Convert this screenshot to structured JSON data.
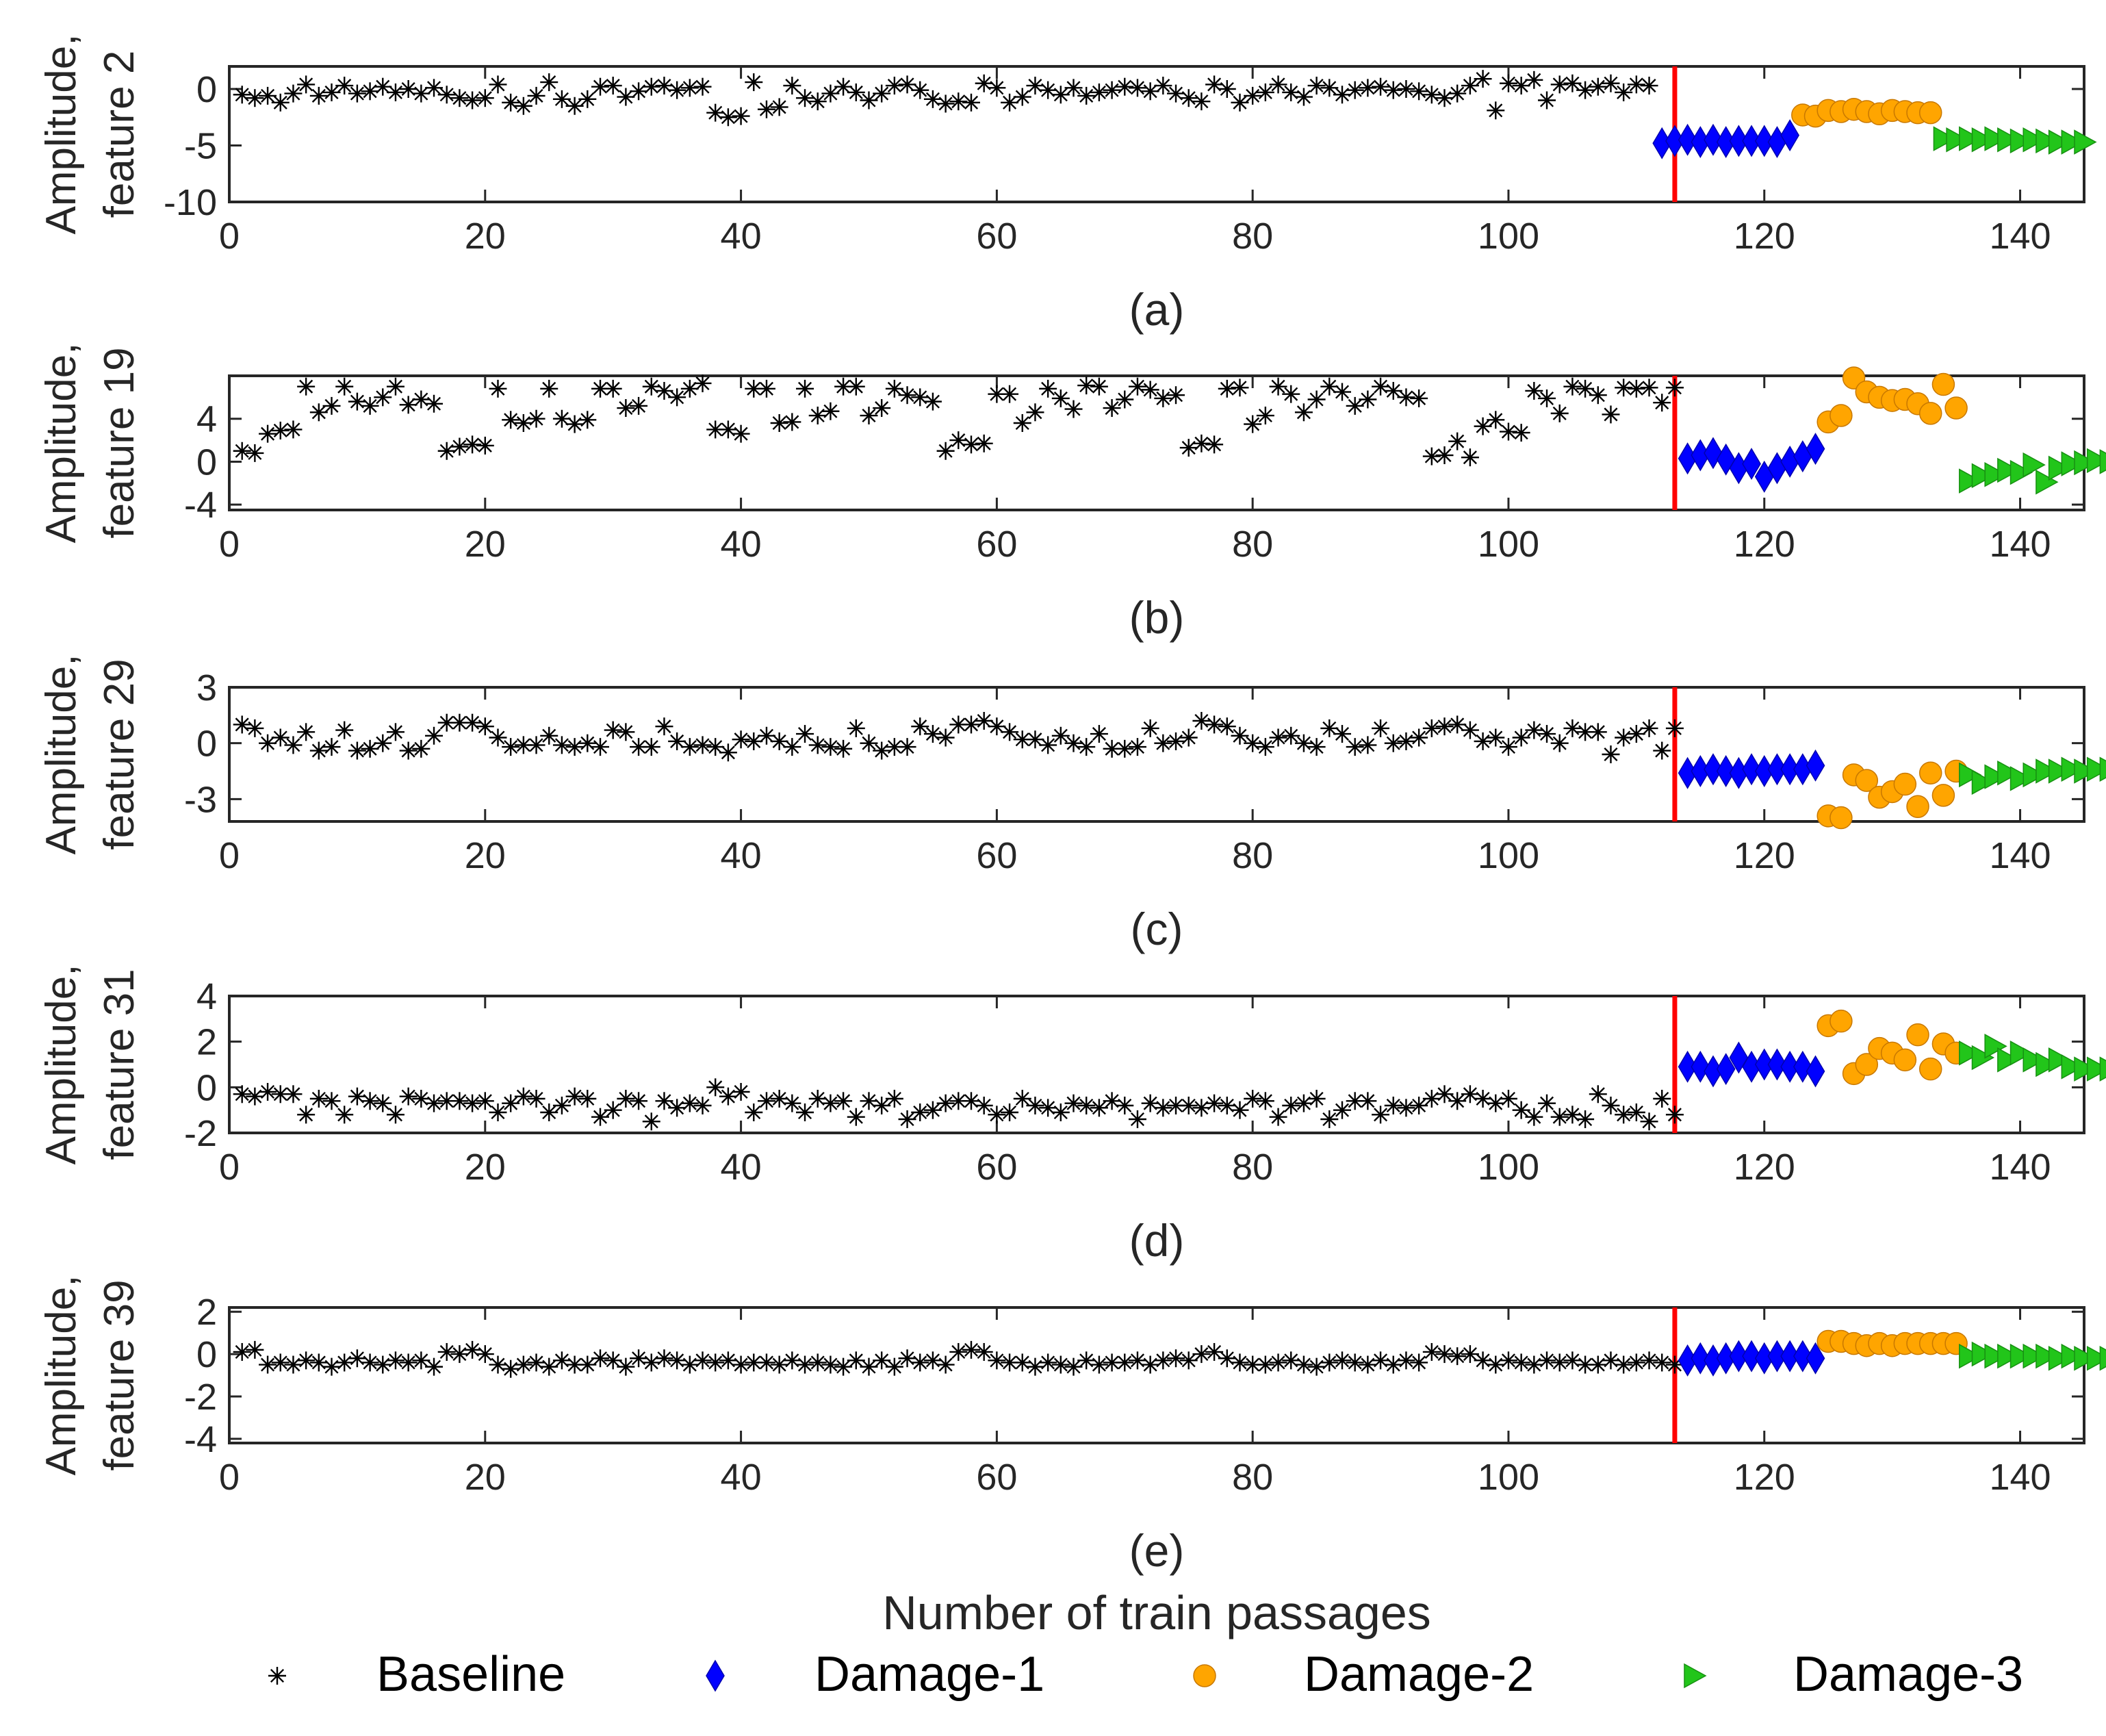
{
  "chart_data": {
    "type": "scatter",
    "xlabel": "Number of  train passages",
    "xlim": [
      0,
      145
    ],
    "xticks": [
      0,
      20,
      40,
      60,
      80,
      100,
      120,
      140
    ],
    "damage_onset": 113,
    "legend": [
      {
        "name": "Baseline",
        "marker": "asterisk",
        "color": "#000000"
      },
      {
        "name": "Damage-1",
        "marker": "diamond",
        "color": "#0000ff"
      },
      {
        "name": "Damage-2",
        "marker": "circle",
        "color": "#ffa500"
      },
      {
        "name": "Damage-3",
        "marker": "triangle-right",
        "color": "#22c51a"
      }
    ],
    "panels": [
      {
        "caption": "(a)",
        "ylabel": [
          "Amplitude,",
          "feature 2"
        ],
        "ylim": [
          -10,
          2
        ],
        "yticks": [
          0,
          -5,
          -10
        ],
        "series": {
          "Baseline": [
            -0.5,
            -0.8,
            -0.6,
            -1.2,
            -0.4,
            0.4,
            -0.6,
            -0.3,
            0.3,
            -0.4,
            -0.2,
            0.2,
            -0.3,
            0.0,
            -0.4,
            0.1,
            -0.5,
            -0.8,
            -1.0,
            -0.8,
            0.4,
            -1.2,
            -1.5,
            -0.6,
            0.6,
            -0.9,
            -1.5,
            -0.9,
            0.2,
            0.3,
            -0.7,
            -0.2,
            0.2,
            0.3,
            -0.1,
            0.1,
            0.2,
            -2.1,
            -2.5,
            -2.4,
            0.6,
            -1.8,
            -1.6,
            0.3,
            -0.8,
            -1.1,
            -0.4,
            0.2,
            -0.3,
            -1.0,
            -0.4,
            0.3,
            0.4,
            -0.1,
            -0.9,
            -1.3,
            -1.1,
            -1.2,
            0.5,
            0.1,
            -1.2,
            -0.7,
            0.3,
            -0.1,
            -0.5,
            0.1,
            -0.6,
            -0.3,
            -0.1,
            0.2,
            0.1,
            -0.2,
            0.3,
            -0.4,
            -0.8,
            -1.1,
            0.4,
            0.0,
            -1.2,
            -0.6,
            -0.3,
            0.4,
            -0.3,
            -0.7,
            0.3,
            0.1,
            -0.5,
            -0.1,
            0.1,
            0.2,
            -0.1,
            0.0,
            -0.2,
            -0.5,
            -0.8,
            -0.4,
            0.3,
            0.9,
            -1.9,
            0.5,
            0.3,
            0.8,
            -1.0,
            0.4,
            0.5,
            -0.1,
            0.2,
            0.5,
            -0.3,
            0.4,
            0.3
          ],
          "Damage-1": [
            -4.8,
            -4.6,
            -4.5,
            -4.7,
            -4.5,
            -4.7,
            -4.6,
            -4.6,
            -4.6,
            -4.7,
            -4.1
          ],
          "Damage-2": [
            -2.3,
            -2.4,
            -1.9,
            -2.0,
            -1.8,
            -2.0,
            -2.2,
            -1.9,
            -2.0,
            -2.1,
            -2.1
          ],
          "Damage-3": [
            -4.4,
            -4.5,
            -4.4,
            -4.5,
            -4.4,
            -4.5,
            -4.6,
            -4.5,
            -4.6,
            -4.7,
            -4.7,
            -4.7
          ]
        }
      },
      {
        "caption": "(b)",
        "ylabel": [
          "Amplitude,",
          "feature 19"
        ],
        "ylim": [
          -4.5,
          8
        ],
        "yticks": [
          4,
          0,
          -4
        ],
        "series": {
          "Baseline": [
            1.0,
            0.8,
            2.6,
            2.9,
            3.0,
            7.0,
            4.6,
            5.2,
            7.0,
            5.6,
            5.2,
            6.0,
            7.0,
            5.3,
            5.8,
            5.4,
            1.0,
            1.4,
            1.6,
            1.5,
            6.8,
            3.9,
            3.6,
            4.0,
            6.8,
            4.0,
            3.5,
            3.9,
            6.8,
            6.8,
            5.0,
            5.2,
            7.0,
            6.6,
            6.0,
            6.8,
            7.3,
            3.0,
            3.0,
            2.6,
            6.8,
            6.8,
            3.6,
            3.7,
            6.8,
            4.3,
            4.7,
            7.0,
            7.0,
            4.3,
            5.0,
            6.8,
            6.2,
            6.0,
            5.6,
            1.0,
            2.0,
            1.6,
            1.7,
            6.3,
            6.3,
            3.6,
            4.6,
            6.8,
            5.9,
            4.9,
            7.1,
            7.0,
            5.0,
            5.8,
            7.0,
            6.7,
            5.9,
            6.2,
            1.3,
            1.7,
            1.6,
            6.8,
            6.9,
            3.5,
            4.3,
            7.0,
            6.3,
            4.6,
            5.8,
            7.0,
            6.5,
            5.2,
            5.8,
            7.0,
            6.6,
            6.0,
            5.9,
            0.5,
            0.6,
            1.9,
            0.4,
            3.3,
            3.9,
            2.8,
            2.7,
            6.6,
            5.9,
            4.5,
            7.0,
            6.8,
            6.2,
            4.4,
            6.9,
            6.8,
            6.9,
            5.5,
            6.9
          ],
          "Damage-1": [
            0.3,
            0.6,
            0.8,
            0.2,
            -0.6,
            -0.2,
            -1.4,
            -0.6,
            0.0,
            0.5,
            1.2
          ],
          "Damage-2": [
            3.7,
            4.3,
            7.8,
            6.5,
            6.0,
            5.7,
            5.8,
            5.4,
            4.5,
            7.2,
            5.0
          ],
          "Damage-3": [
            -1.8,
            -1.3,
            -1.2,
            -0.8,
            -1.0,
            -0.3,
            -1.9,
            -0.6,
            -0.2,
            -0.1,
            0.1,
            0.0
          ]
        }
      },
      {
        "caption": "(c)",
        "ylabel": [
          "Amplitude,",
          "feature 29"
        ],
        "ylim": [
          -4.2,
          3
        ],
        "yticks": [
          3,
          0,
          -3
        ],
        "series": {
          "Baseline": [
            1.0,
            0.8,
            0.0,
            0.3,
            -0.1,
            0.6,
            -0.4,
            -0.2,
            0.7,
            -0.4,
            -0.3,
            0.0,
            0.6,
            -0.4,
            -0.3,
            0.4,
            1.1,
            1.1,
            1.1,
            0.9,
            0.3,
            -0.2,
            -0.1,
            -0.1,
            0.4,
            -0.1,
            -0.2,
            0.0,
            -0.2,
            0.7,
            0.6,
            -0.2,
            -0.2,
            0.9,
            0.1,
            -0.2,
            -0.1,
            -0.2,
            -0.5,
            0.2,
            0.1,
            0.4,
            0.1,
            -0.2,
            0.5,
            -0.1,
            -0.2,
            -0.3,
            0.8,
            0.0,
            -0.4,
            -0.2,
            -0.2,
            0.9,
            0.5,
            0.3,
            1.0,
            1.0,
            1.2,
            0.9,
            0.6,
            0.2,
            0.2,
            -0.1,
            0.4,
            0.0,
            -0.2,
            0.5,
            -0.3,
            -0.3,
            -0.2,
            0.8,
            0.0,
            0.1,
            0.3,
            1.2,
            1.0,
            0.9,
            0.4,
            0.0,
            -0.2,
            0.3,
            0.4,
            0.0,
            -0.2,
            0.8,
            0.5,
            -0.2,
            -0.1,
            0.8,
            0.0,
            0.1,
            0.3,
            0.8,
            0.9,
            1.0,
            0.7,
            0.1,
            0.3,
            -0.2,
            0.3,
            0.7,
            0.5,
            0.0,
            0.8,
            0.6,
            0.6,
            -0.6,
            0.3,
            0.5,
            0.8,
            -0.4,
            0.8
          ],
          "Damage-1": [
            -1.6,
            -1.5,
            -1.4,
            -1.5,
            -1.6,
            -1.4,
            -1.5,
            -1.4,
            -1.4,
            -1.4,
            -1.2
          ],
          "Damage-2": [
            -3.9,
            -4.0,
            -1.7,
            -2.0,
            -2.9,
            -2.6,
            -2.2,
            -3.4,
            -1.6,
            -2.8,
            -1.5
          ],
          "Damage-3": [
            -1.7,
            -2.1,
            -1.8,
            -1.6,
            -1.9,
            -1.7,
            -1.5,
            -1.5,
            -1.4,
            -1.5,
            -1.4,
            -1.4
          ]
        }
      },
      {
        "caption": "(d)",
        "ylabel": [
          "Amplitude,",
          "feature 31"
        ],
        "ylim": [
          -2,
          4
        ],
        "yticks": [
          4,
          2,
          0,
          -2
        ],
        "series": {
          "Baseline": [
            -0.3,
            -0.4,
            -0.2,
            -0.3,
            -0.3,
            -1.2,
            -0.5,
            -0.6,
            -1.2,
            -0.4,
            -0.6,
            -0.7,
            -1.2,
            -0.4,
            -0.5,
            -0.7,
            -0.6,
            -0.6,
            -0.7,
            -0.6,
            -1.1,
            -0.7,
            -0.4,
            -0.5,
            -1.1,
            -0.8,
            -0.4,
            -0.5,
            -1.3,
            -1.0,
            -0.5,
            -0.6,
            -1.5,
            -0.6,
            -0.9,
            -0.7,
            -0.8,
            0.0,
            -0.4,
            -0.2,
            -1.1,
            -0.6,
            -0.5,
            -0.7,
            -1.1,
            -0.5,
            -0.7,
            -0.6,
            -1.3,
            -0.6,
            -0.8,
            -0.5,
            -1.4,
            -1.1,
            -1.0,
            -0.7,
            -0.6,
            -0.6,
            -0.8,
            -1.2,
            -1.1,
            -0.5,
            -0.8,
            -0.9,
            -1.1,
            -0.7,
            -0.8,
            -0.9,
            -0.6,
            -0.8,
            -1.4,
            -0.7,
            -0.9,
            -0.8,
            -0.8,
            -0.9,
            -0.7,
            -0.8,
            -1.0,
            -0.5,
            -0.6,
            -1.3,
            -0.8,
            -0.7,
            -0.5,
            -1.4,
            -1.0,
            -0.6,
            -0.6,
            -1.2,
            -0.8,
            -0.9,
            -0.8,
            -0.5,
            -0.3,
            -0.6,
            -0.3,
            -0.5,
            -0.7,
            -0.5,
            -1.0,
            -1.3,
            -0.7,
            -1.3,
            -1.2,
            -1.4,
            -0.3,
            -0.8,
            -1.2,
            -1.1,
            -1.5,
            -0.5,
            -1.2
          ],
          "Damage-1": [
            0.9,
            0.9,
            0.7,
            0.8,
            1.3,
            0.9,
            1.0,
            1.0,
            0.9,
            0.9,
            0.7
          ],
          "Damage-2": [
            2.7,
            2.9,
            0.6,
            1.0,
            1.7,
            1.5,
            1.2,
            2.3,
            0.8,
            1.9,
            1.5
          ],
          "Damage-3": [
            1.5,
            1.3,
            1.8,
            1.2,
            1.5,
            1.2,
            1.0,
            1.2,
            0.9,
            0.8,
            0.8,
            0.8
          ]
        }
      },
      {
        "caption": "(e)",
        "ylabel": [
          "Amplitude,",
          "feature 39"
        ],
        "ylim": [
          -4.2,
          2.2
        ],
        "yticks": [
          2,
          0,
          -2,
          -4
        ],
        "series": {
          "Baseline": [
            0.1,
            0.2,
            -0.5,
            -0.4,
            -0.5,
            -0.3,
            -0.4,
            -0.6,
            -0.4,
            -0.2,
            -0.4,
            -0.5,
            -0.3,
            -0.4,
            -0.3,
            -0.6,
            0.1,
            0.0,
            0.2,
            0.0,
            -0.5,
            -0.7,
            -0.5,
            -0.4,
            -0.6,
            -0.3,
            -0.5,
            -0.5,
            -0.2,
            -0.3,
            -0.6,
            -0.2,
            -0.4,
            -0.2,
            -0.3,
            -0.5,
            -0.3,
            -0.4,
            -0.3,
            -0.5,
            -0.4,
            -0.4,
            -0.5,
            -0.3,
            -0.5,
            -0.4,
            -0.5,
            -0.6,
            -0.3,
            -0.6,
            -0.3,
            -0.6,
            -0.2,
            -0.4,
            -0.3,
            -0.5,
            0.1,
            0.2,
            0.1,
            -0.3,
            -0.4,
            -0.4,
            -0.6,
            -0.4,
            -0.5,
            -0.6,
            -0.3,
            -0.5,
            -0.4,
            -0.4,
            -0.3,
            -0.5,
            -0.3,
            -0.2,
            -0.3,
            0.0,
            0.1,
            -0.2,
            -0.4,
            -0.5,
            -0.5,
            -0.4,
            -0.3,
            -0.5,
            -0.6,
            -0.4,
            -0.3,
            -0.4,
            -0.5,
            -0.3,
            -0.5,
            -0.3,
            -0.4,
            0.1,
            0.0,
            -0.1,
            0.0,
            -0.3,
            -0.5,
            -0.3,
            -0.4,
            -0.5,
            -0.3,
            -0.4,
            -0.3,
            -0.5,
            -0.5,
            -0.3,
            -0.5,
            -0.4,
            -0.3,
            -0.4,
            -0.5
          ],
          "Damage-1": [
            -0.3,
            -0.2,
            -0.3,
            -0.2,
            -0.1,
            -0.1,
            -0.2,
            -0.1,
            -0.1,
            -0.1,
            -0.2
          ],
          "Damage-2": [
            0.6,
            0.6,
            0.5,
            0.4,
            0.5,
            0.4,
            0.5,
            0.5,
            0.5,
            0.5,
            0.5
          ],
          "Damage-3": [
            -0.1,
            0.0,
            -0.1,
            -0.1,
            -0.1,
            -0.1,
            -0.1,
            -0.2,
            -0.1,
            -0.2,
            -0.2,
            -0.2
          ]
        }
      }
    ]
  }
}
